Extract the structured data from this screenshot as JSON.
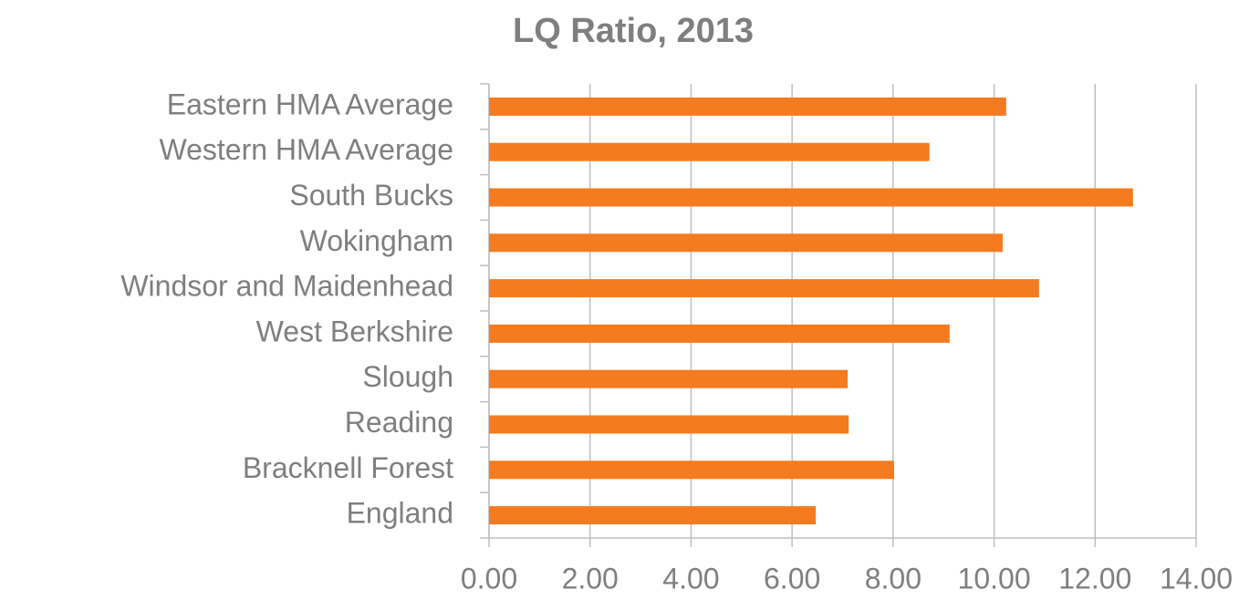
{
  "chart_data": {
    "type": "bar",
    "orientation": "horizontal",
    "title": "LQ Ratio, 2013",
    "categories": [
      "Eastern HMA Average",
      "Western HMA Average",
      "South Bucks",
      "Wokingham",
      "Windsor and Maidenhead",
      "West Berkshire",
      "Slough",
      "Reading",
      "Bracknell Forest",
      "England"
    ],
    "values": [
      10.24,
      8.72,
      12.75,
      10.17,
      10.89,
      9.12,
      7.1,
      7.12,
      8.02,
      6.47
    ],
    "color": "#f47b20",
    "xlim": [
      0,
      14
    ],
    "xticks": [
      {
        "value": 0,
        "label": "0.00"
      },
      {
        "value": 2,
        "label": "2.00"
      },
      {
        "value": 4,
        "label": "4.00"
      },
      {
        "value": 6,
        "label": "6.00"
      },
      {
        "value": 8,
        "label": "8.00"
      },
      {
        "value": 10,
        "label": "10.00"
      },
      {
        "value": 12,
        "label": "12.00"
      },
      {
        "value": 14,
        "label": "14.00"
      }
    ],
    "grid": true
  }
}
